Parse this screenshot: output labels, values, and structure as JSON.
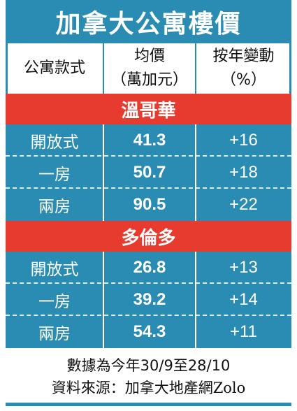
{
  "title": "加拿大公寓樓價",
  "header": {
    "type": "公寓款式",
    "price": [
      "均價",
      "（萬加元）"
    ],
    "change": [
      "按年變動",
      "（%）"
    ]
  },
  "sections": [
    {
      "name": "溫哥華",
      "rows": [
        [
          "開放式",
          "41.3",
          "+16"
        ],
        [
          "一房",
          "50.7",
          "+18"
        ],
        [
          "兩房",
          "90.5",
          "+22"
        ]
      ]
    },
    {
      "name": "多倫多",
      "rows": [
        [
          "開放式",
          "26.8",
          "+13"
        ],
        [
          "一房",
          "39.2",
          "+14"
        ],
        [
          "兩房",
          "54.3",
          "+11"
        ]
      ]
    }
  ],
  "footer": {
    "note": "數據為今年30/9至28/10",
    "source": "資料來源：加拿大地產網Zolo"
  }
}
